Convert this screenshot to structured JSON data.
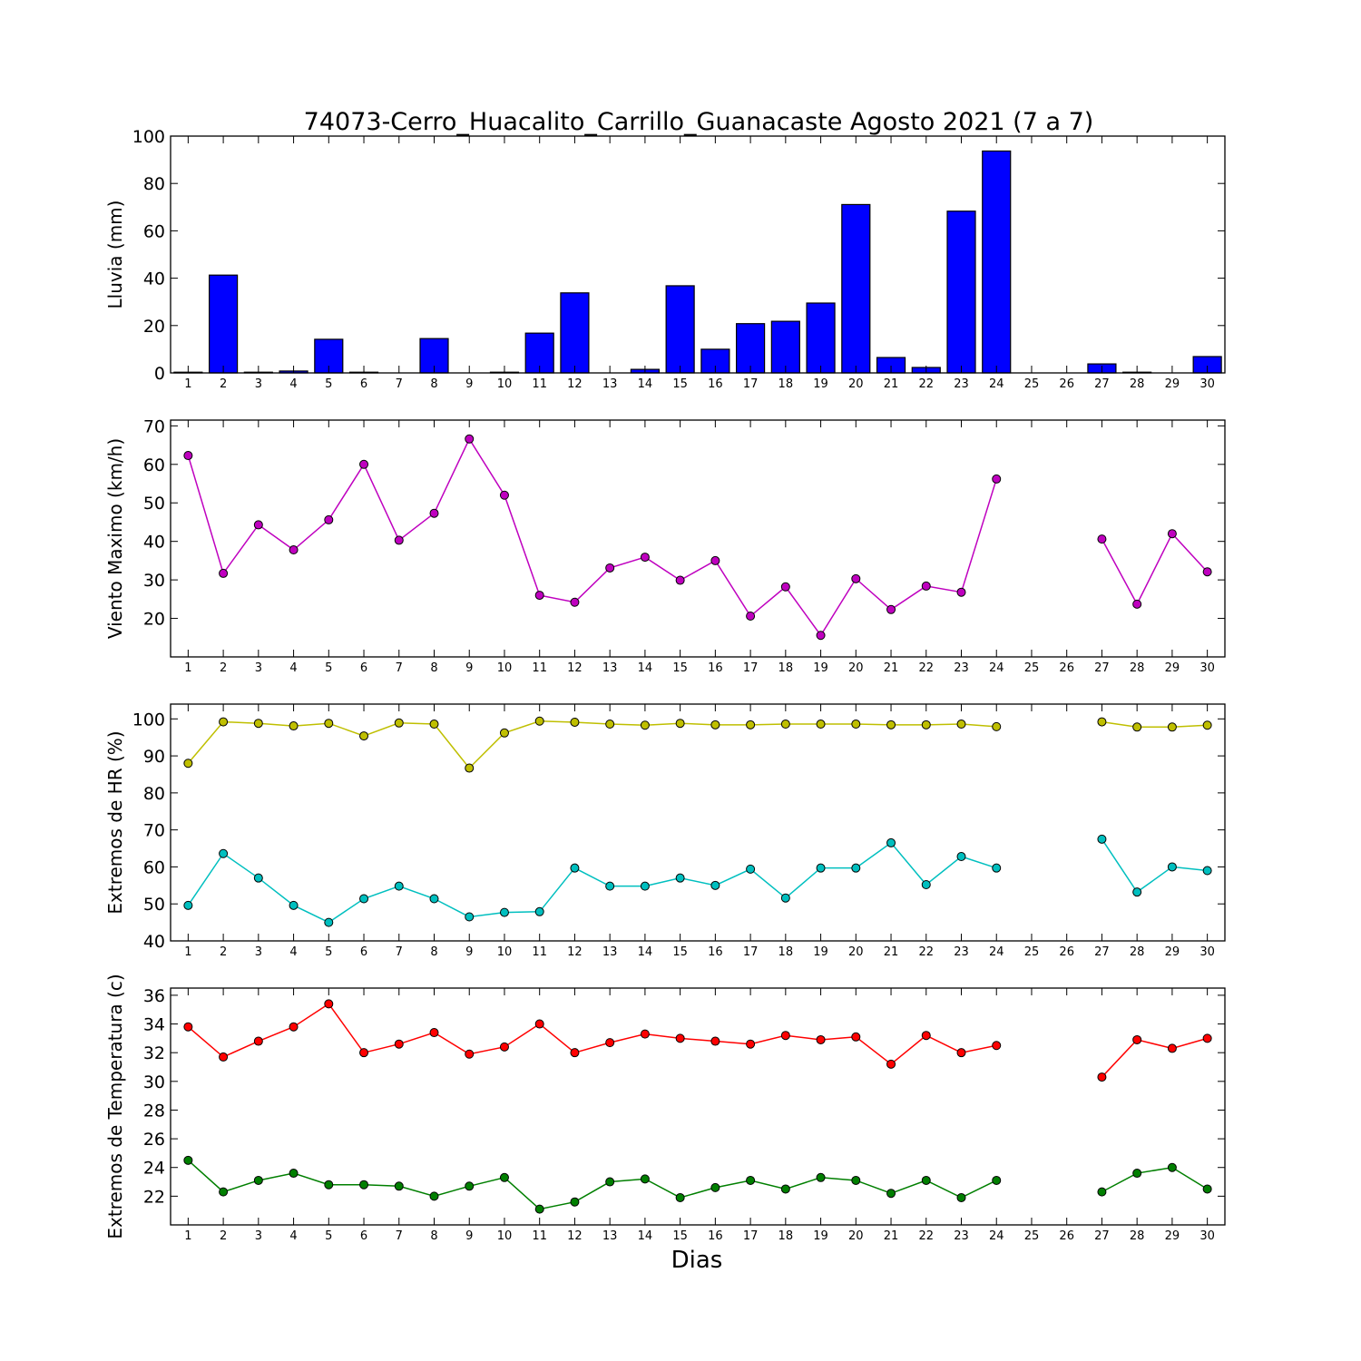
{
  "chart_data": {
    "title": "74073-Cerro_Huacalito_Carrillo_Guanacaste Agosto 2021  (7 a 7)",
    "xlabel": "Dias",
    "x": [
      1,
      2,
      3,
      4,
      5,
      6,
      7,
      8,
      9,
      10,
      11,
      12,
      13,
      14,
      15,
      16,
      17,
      18,
      19,
      20,
      21,
      22,
      23,
      24,
      25,
      26,
      27,
      28,
      29,
      30
    ],
    "panels": [
      {
        "type": "bar",
        "ylabel": "Lluvia (mm)",
        "ylim": [
          0,
          100
        ],
        "yticks": [
          0,
          20,
          40,
          60,
          80,
          100
        ],
        "series": [
          {
            "color": "#0000ff",
            "values": [
              0.3,
              41.3,
              0.3,
              0.8,
              14.2,
              0.3,
              0.0,
              14.5,
              0.0,
              0.3,
              16.8,
              33.8,
              0.0,
              1.5,
              36.8,
              10.0,
              20.8,
              21.8,
              29.5,
              71.1,
              6.5,
              2.3,
              68.3,
              93.7,
              0.0,
              0.0,
              3.8,
              0.3,
              0.0,
              6.9
            ]
          }
        ]
      },
      {
        "type": "line",
        "ylabel": "Viento Maximo (km/h)",
        "ylim": [
          10,
          71.5
        ],
        "yticks": [
          20,
          30,
          40,
          50,
          60,
          70
        ],
        "series": [
          {
            "color": "#bf00bf",
            "values": [
              62.3,
              31.7,
              44.3,
              37.8,
              45.6,
              60.0,
              40.3,
              47.3,
              66.6,
              52.0,
              26.0,
              24.2,
              33.1,
              35.9,
              29.9,
              35.0,
              20.6,
              28.2,
              15.6,
              30.3,
              22.3,
              28.4,
              26.8,
              56.2,
              null,
              null,
              40.6,
              23.7,
              42.0,
              32.1
            ]
          }
        ]
      },
      {
        "type": "line",
        "ylabel": "Extremos de HR (%)",
        "ylim": [
          40,
          104
        ],
        "yticks": [
          40,
          50,
          60,
          70,
          80,
          90,
          100
        ],
        "series": [
          {
            "color": "#bfbf00",
            "values": [
              88.0,
              99.2,
              98.8,
              98.1,
              98.8,
              95.4,
              98.9,
              98.6,
              86.7,
              96.2,
              99.4,
              99.1,
              98.6,
              98.3,
              98.8,
              98.4,
              98.4,
              98.6,
              98.6,
              98.6,
              98.4,
              98.4,
              98.6,
              97.9,
              null,
              null,
              99.2,
              97.8,
              97.8,
              98.3
            ]
          },
          {
            "color": "#00bfbf",
            "values": [
              49.6,
              63.6,
              57.0,
              49.6,
              45.0,
              51.4,
              54.8,
              51.4,
              46.5,
              47.7,
              47.9,
              59.7,
              54.8,
              54.8,
              57.0,
              55.0,
              59.4,
              51.6,
              59.7,
              59.7,
              66.5,
              55.2,
              62.8,
              59.7,
              null,
              null,
              67.5,
              53.2,
              60.0,
              59.0
            ]
          }
        ]
      },
      {
        "type": "line",
        "ylabel": "Extremos de Temperatura (c)",
        "ylim": [
          20,
          36.5
        ],
        "yticks": [
          22,
          24,
          26,
          28,
          30,
          32,
          34,
          36
        ],
        "series": [
          {
            "color": "#ff0000",
            "values": [
              33.8,
              31.7,
              32.8,
              33.8,
              35.4,
              32.0,
              32.6,
              33.4,
              31.9,
              32.4,
              34.0,
              32.0,
              32.7,
              33.3,
              33.0,
              32.8,
              32.6,
              33.2,
              32.9,
              33.1,
              31.2,
              33.2,
              32.0,
              32.5,
              null,
              null,
              30.3,
              32.9,
              32.3,
              33.0
            ]
          },
          {
            "color": "#007f00",
            "values": [
              24.5,
              22.3,
              23.1,
              23.6,
              22.8,
              22.8,
              22.7,
              22.0,
              22.7,
              23.3,
              21.1,
              21.6,
              23.0,
              23.2,
              21.9,
              22.6,
              23.1,
              22.5,
              23.3,
              23.1,
              22.2,
              23.1,
              21.9,
              23.1,
              null,
              null,
              22.3,
              23.6,
              24.0,
              22.5
            ]
          }
        ]
      }
    ]
  }
}
